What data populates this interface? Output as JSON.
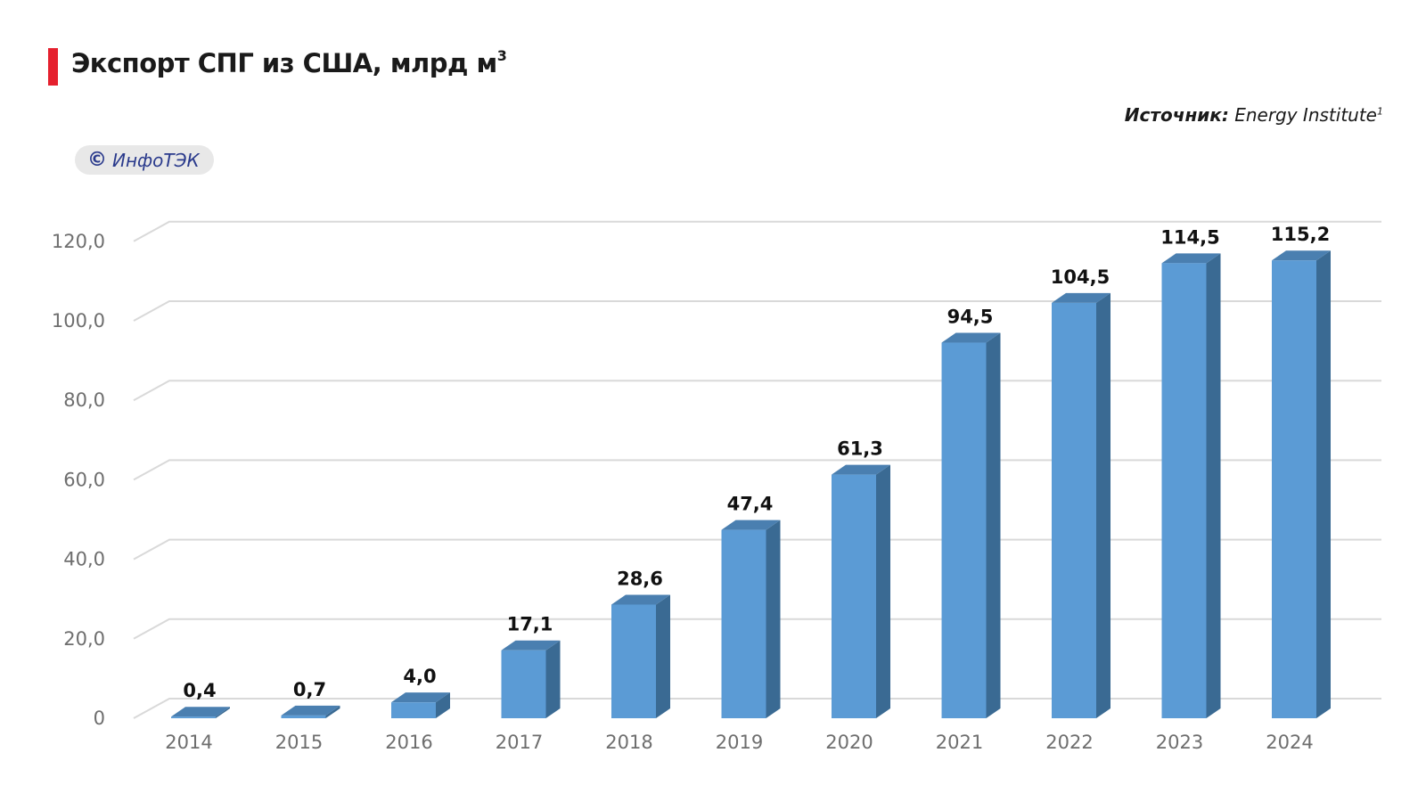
{
  "header": {
    "title": "Экспорт СПГ из США, млрд м",
    "title_superscript": "3",
    "source_label": "Источник:",
    "source_value": " Energy Institute",
    "source_superscript": "1"
  },
  "badge": {
    "icon": "©",
    "text": "ИнфоТЭК"
  },
  "colors": {
    "accent": "#e5202e",
    "bar_front": "#5b9bd5",
    "bar_side": "#3a6a93",
    "bar_top": "#4a7fb0",
    "grid": "#d9d9d9"
  },
  "chart_data": {
    "type": "bar",
    "title": "Экспорт СПГ из США, млрд м3",
    "xlabel": "",
    "ylabel": "",
    "ylim": [
      0,
      120
    ],
    "grid": true,
    "categories": [
      "2014",
      "2015",
      "2016",
      "2017",
      "2018",
      "2019",
      "2020",
      "2021",
      "2022",
      "2023",
      "2024"
    ],
    "values": [
      0.4,
      0.7,
      4.0,
      17.1,
      28.6,
      47.4,
      61.3,
      94.5,
      104.5,
      114.5,
      115.2
    ],
    "value_labels": [
      "0,4",
      "0,7",
      "4,0",
      "17,1",
      "28,6",
      "47,4",
      "61,3",
      "94,5",
      "104,5",
      "114,5",
      "115,2"
    ],
    "y_ticks": [
      0,
      20,
      40,
      60,
      80,
      100,
      120
    ],
    "y_tick_labels": [
      "0",
      "20,0",
      "40,0",
      "60,0",
      "80,0",
      "100,0",
      "120,0"
    ]
  }
}
